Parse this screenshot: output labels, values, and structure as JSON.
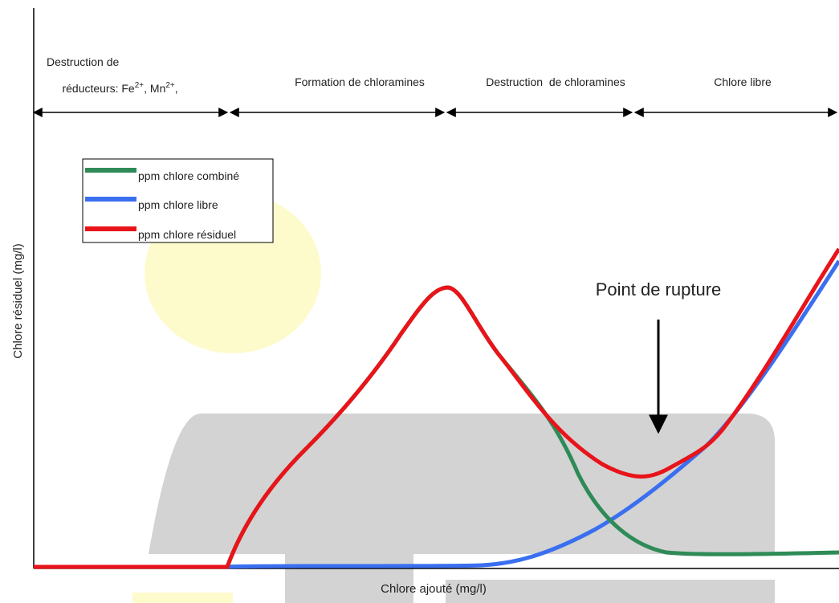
{
  "phases": [
    {
      "line1": "Destruction de",
      "line2": [
        "réducteurs: Fe",
        "2+",
        ", Mn",
        "2+",
        ","
      ]
    },
    {
      "label": "Formation de chloramines"
    },
    {
      "label": "Destruction  de chloramines"
    },
    {
      "label": "Chlore libre"
    }
  ],
  "legend": [
    "ppm chlore combiné",
    "ppm chlore libre",
    "ppm chlore résiduel"
  ],
  "annotation": "Point de rupture",
  "x_label": "Chlore ajouté (mg/l)",
  "y_label": "Chlore résiduel (mg/l)"
}
